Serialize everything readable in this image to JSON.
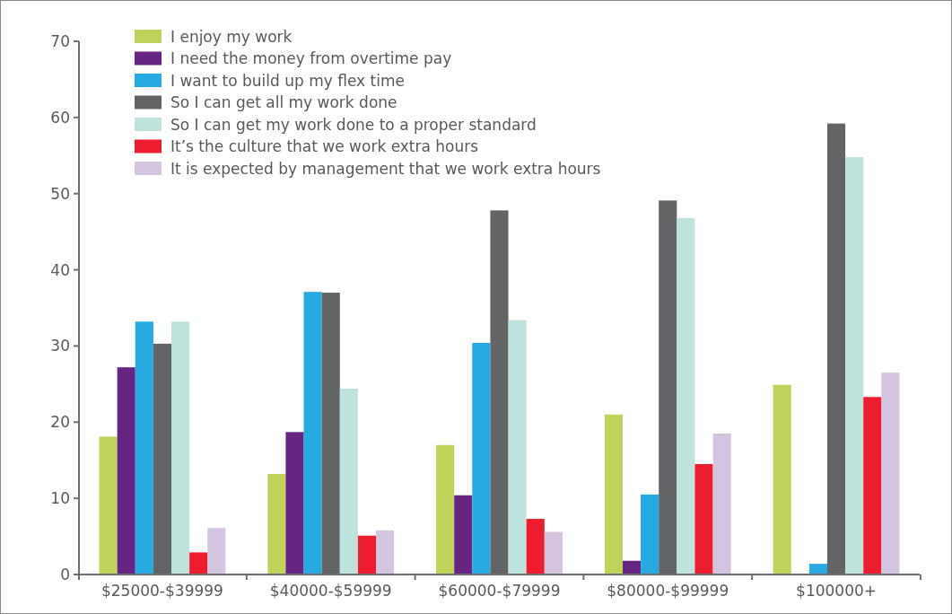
{
  "chart_data": {
    "type": "bar",
    "categories": [
      "$25000-$39999",
      "$40000-$59999",
      "$60000-$79999",
      "$80000-$99999",
      "$100000+"
    ],
    "series": [
      {
        "name": "I enjoy my work",
        "color": "#bfd25a",
        "values": [
          18.1,
          13.2,
          17.0,
          21.0,
          24.9
        ]
      },
      {
        "name": "I need the money from overtime pay",
        "color": "#662483",
        "values": [
          27.2,
          18.7,
          10.4,
          1.8,
          0
        ]
      },
      {
        "name": "I want to build up my flex time",
        "color": "#27a9e1",
        "values": [
          33.2,
          37.1,
          30.4,
          10.5,
          1.4
        ]
      },
      {
        "name": "So I can get all my work done",
        "color": "#636466",
        "values": [
          30.3,
          37.0,
          47.8,
          49.1,
          59.2
        ]
      },
      {
        "name": "So I can get my work done to a proper standard",
        "color": "#bee3dd",
        "values": [
          33.2,
          24.4,
          33.4,
          46.8,
          54.8
        ]
      },
      {
        "name": "It’s the culture that we work extra hours",
        "color": "#ed1c2e",
        "values": [
          2.9,
          5.1,
          7.3,
          14.5,
          23.3
        ]
      },
      {
        "name": "It is expected by management that we work extra hours",
        "color": "#d3c4df",
        "values": [
          6.1,
          5.8,
          5.6,
          18.5,
          26.5
        ]
      }
    ],
    "ylim": [
      0,
      70
    ],
    "yticks": [
      0,
      10,
      20,
      30,
      40,
      50,
      60,
      70
    ],
    "grid": false,
    "legend": "top left"
  }
}
